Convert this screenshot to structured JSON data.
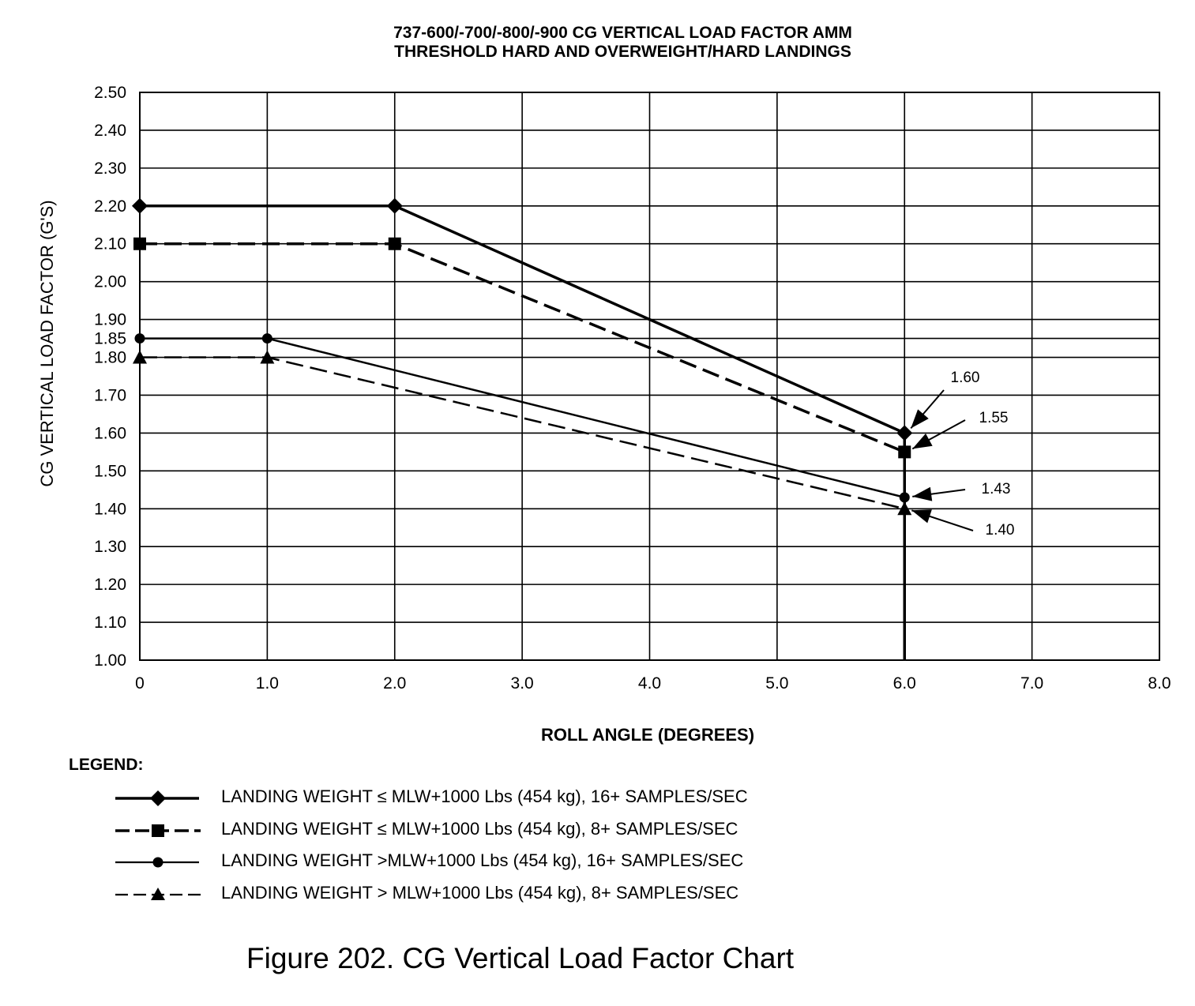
{
  "chart_data": {
    "type": "line",
    "title_line1": "737-600/-700/-800/-900 CG VERTICAL LOAD FACTOR AMM",
    "title_line2": "THRESHOLD HARD AND OVERWEIGHT/HARD LANDINGS",
    "xlabel": "ROLL ANGLE (DEGREES)",
    "ylabel": "CG VERTICAL LOAD FACTOR (G'S)",
    "xlim": [
      0,
      8
    ],
    "ylim": [
      1.0,
      2.5
    ],
    "grid": true,
    "x_ticks": [
      {
        "value": 0,
        "label": "0"
      },
      {
        "value": 1,
        "label": "1.0"
      },
      {
        "value": 2,
        "label": "2.0"
      },
      {
        "value": 3,
        "label": "3.0"
      },
      {
        "value": 4,
        "label": "4.0"
      },
      {
        "value": 5,
        "label": "5.0"
      },
      {
        "value": 6,
        "label": "6.0"
      },
      {
        "value": 7,
        "label": "7.0"
      },
      {
        "value": 8,
        "label": "8.0"
      }
    ],
    "y_ticks": [
      {
        "value": 1.0,
        "label": "1.00"
      },
      {
        "value": 1.1,
        "label": "1.10"
      },
      {
        "value": 1.2,
        "label": "1.20"
      },
      {
        "value": 1.3,
        "label": "1.30"
      },
      {
        "value": 1.4,
        "label": "1.40"
      },
      {
        "value": 1.5,
        "label": "1.50"
      },
      {
        "value": 1.6,
        "label": "1.60"
      },
      {
        "value": 1.7,
        "label": "1.70"
      },
      {
        "value": 1.8,
        "label": "1.80"
      },
      {
        "value": 1.85,
        "label": "1.85"
      },
      {
        "value": 1.9,
        "label": "1.90"
      },
      {
        "value": 2.0,
        "label": "2.00"
      },
      {
        "value": 2.1,
        "label": "2.10"
      },
      {
        "value": 2.2,
        "label": "2.20"
      },
      {
        "value": 2.3,
        "label": "2.30"
      },
      {
        "value": 2.4,
        "label": "2.40"
      },
      {
        "value": 2.5,
        "label": "2.50"
      }
    ],
    "series": [
      {
        "name": "LANDING WEIGHT ≤ MLW+1000 Lbs (454 kg), 16+ SAMPLES/SEC",
        "marker": "diamond",
        "dash": "solid",
        "x": [
          0,
          2,
          6
        ],
        "y": [
          2.2,
          2.2,
          1.6
        ]
      },
      {
        "name": "LANDING WEIGHT ≤ MLW+1000 Lbs (454 kg), 8+ SAMPLES/SEC",
        "marker": "square",
        "dash": "dashed",
        "x": [
          0,
          2,
          6
        ],
        "y": [
          2.1,
          2.1,
          1.55
        ]
      },
      {
        "name": "LANDING WEIGHT >MLW+1000 Lbs (454 kg), 16+ SAMPLES/SEC",
        "marker": "circle",
        "dash": "solid",
        "x": [
          0,
          1,
          6
        ],
        "y": [
          1.85,
          1.85,
          1.43
        ]
      },
      {
        "name": "LANDING WEIGHT > MLW+1000 Lbs (454 kg), 8+ SAMPLES/SEC",
        "marker": "triangle",
        "dash": "dashed",
        "x": [
          0,
          1,
          6
        ],
        "y": [
          1.8,
          1.8,
          1.4
        ]
      }
    ],
    "reference_line": {
      "x": 6,
      "y_from": 1.0,
      "y_to": 1.6
    },
    "annotations": [
      {
        "label": "1.60",
        "x": 6,
        "y": 1.6
      },
      {
        "label": "1.55",
        "x": 6,
        "y": 1.55
      },
      {
        "label": "1.43",
        "x": 6,
        "y": 1.43
      },
      {
        "label": "1.40",
        "x": 6,
        "y": 1.4
      }
    ]
  },
  "legend": {
    "title": "LEGEND:"
  },
  "caption": "Figure 202. CG Vertical Load Factor Chart",
  "colors": {
    "ink": "#000000",
    "background": "#ffffff"
  }
}
